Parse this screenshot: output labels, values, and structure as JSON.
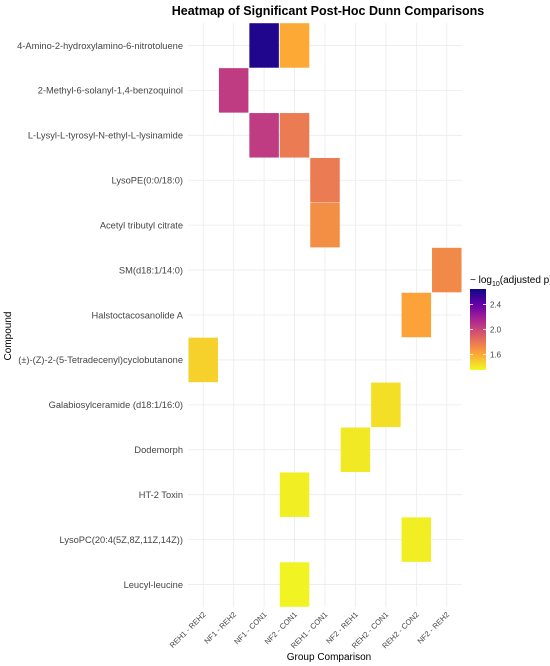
{
  "chart_data": {
    "type": "heatmap",
    "title": "Heatmap of Significant Post-Hoc Dunn Comparisons",
    "xlabel": "Group Comparison",
    "ylabel": "Compound",
    "x_categories": [
      "REH1 - REH2",
      "NF1 - REH2",
      "NF1 - CON1",
      "NF2 - CON1",
      "REH1 - CON1",
      "NF2 - REH1",
      "REH2 - CON1",
      "REH2 - CON2",
      "NF2 - REH2"
    ],
    "y_categories": [
      "4-Amino-2-hydroxylamino-6-nitrotoluene",
      "2-Methyl-6-solanyl-1,4-benzoquinol",
      "L-Lysyl-L-tyrosyl-N-ethyl-L-lysinamide",
      "LysoPE(0:0/18:0)",
      "Acetyl tributyl citrate",
      "SM(d18:1/14:0)",
      "Halstoctacosanolide A",
      "(±)-(Z)-2-(5-Tetradecenyl)cyclobutanone",
      "Galabiosylceramide (d18:1/16:0)",
      "Dodemorph",
      "HT-2 Toxin",
      "LysoPC(20:4(5Z,8Z,11Z,14Z))",
      "Leucyl-leucine"
    ],
    "cells": [
      {
        "compound": "4-Amino-2-hydroxylamino-6-nitrotoluene",
        "comparison": "NF1 - CON1",
        "value": 2.6
      },
      {
        "compound": "4-Amino-2-hydroxylamino-6-nitrotoluene",
        "comparison": "NF2 - CON1",
        "value": 1.6
      },
      {
        "compound": "2-Methyl-6-solanyl-1,4-benzoquinol",
        "comparison": "NF1 - REH2",
        "value": 2.05
      },
      {
        "compound": "L-Lysyl-L-tyrosyl-N-ethyl-L-lysinamide",
        "comparison": "NF1 - CON1",
        "value": 2.05
      },
      {
        "compound": "L-Lysyl-L-tyrosyl-N-ethyl-L-lysinamide",
        "comparison": "NF2 - CON1",
        "value": 1.78
      },
      {
        "compound": "LysoPE(0:0/18:0)",
        "comparison": "REH1 - CON1",
        "value": 1.78
      },
      {
        "compound": "Acetyl tributyl citrate",
        "comparison": "REH1 - CON1",
        "value": 1.7
      },
      {
        "compound": "SM(d18:1/14:0)",
        "comparison": "NF2 - REH2",
        "value": 1.72
      },
      {
        "compound": "Halstoctacosanolide A",
        "comparison": "REH2 - CON2",
        "value": 1.62
      },
      {
        "compound": "(±)-(Z)-2-(5-Tetradecenyl)cyclobutanone",
        "comparison": "REH1 - REH2",
        "value": 1.48
      },
      {
        "compound": "Galabiosylceramide (d18:1/16:0)",
        "comparison": "REH2 - CON1",
        "value": 1.43
      },
      {
        "compound": "Dodemorph",
        "comparison": "NF2 - REH1",
        "value": 1.4
      },
      {
        "compound": "HT-2 Toxin",
        "comparison": "NF2 - CON1",
        "value": 1.38
      },
      {
        "compound": "LysoPC(20:4(5Z,8Z,11Z,14Z))",
        "comparison": "REH2 - CON2",
        "value": 1.38
      },
      {
        "compound": "Leucyl-leucine",
        "comparison": "NF2 - CON1",
        "value": 1.37
      }
    ],
    "legend": {
      "title_prefix": "− log",
      "title_sub": "10",
      "title_suffix": "(adjusted p)",
      "ticks": [
        2.4,
        2.0,
        1.6
      ],
      "range": [
        1.35,
        2.65
      ],
      "placement": "right"
    },
    "colormap": "plasma",
    "colors": [
      "#0d0887",
      "#6a00a8",
      "#b12a90",
      "#e16462",
      "#fca636",
      "#f0f921"
    ],
    "grid": true
  }
}
